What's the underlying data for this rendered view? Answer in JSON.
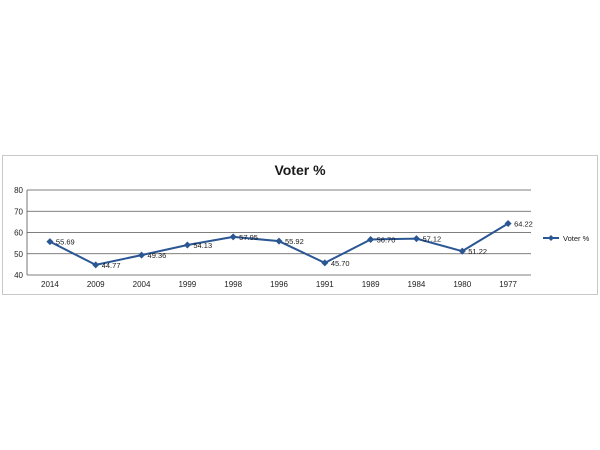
{
  "chart_data": {
    "type": "line",
    "title": "Voter %",
    "xlabel": "",
    "ylabel": "",
    "categories": [
      "2014",
      "2009",
      "2004",
      "1999",
      "1998",
      "1996",
      "1991",
      "1989",
      "1984",
      "1980",
      "1977"
    ],
    "series": [
      {
        "name": "Voter %",
        "values": [
          55.69,
          44.77,
          49.36,
          54.13,
          57.95,
          55.92,
          45.7,
          56.7,
          57.12,
          51.22,
          64.22
        ],
        "labels": [
          "55.69",
          "44.77",
          "49.36",
          "54.13",
          "57.95",
          "55.92",
          "45.70",
          "56.70",
          "57.12",
          "51.22",
          "64.22"
        ]
      }
    ],
    "ylim": [
      40,
      80
    ],
    "yticks": [
      "40",
      "50",
      "60",
      "70",
      "80"
    ],
    "grid": true,
    "legend": "right",
    "colors": {
      "series": "#2a5694",
      "grid": "#555555"
    }
  }
}
